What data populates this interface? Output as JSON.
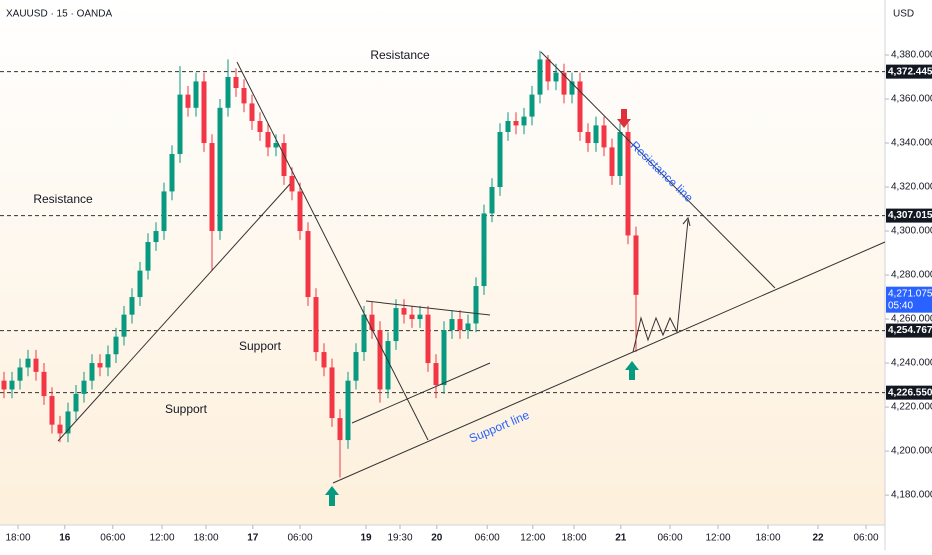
{
  "chart_data": {
    "type": "candlestick",
    "title": "XAUUSD · 15 · OANDA",
    "currency": "USD",
    "up_color": "#089981",
    "down_color": "#f23645",
    "open": [
      4232,
      4228,
      4232,
      4238,
      4242,
      4236,
      4225,
      4212,
      4208,
      4218,
      4226,
      4232,
      4240,
      4238,
      4244,
      4252,
      4262,
      4270,
      4282,
      4295,
      4300,
      4318,
      4335,
      4362,
      4356,
      4368,
      4340,
      4300,
      4356,
      4370,
      4365,
      4358,
      4350,
      4345,
      4338,
      4340,
      4325,
      4318,
      4300,
      4270,
      4245,
      4238,
      4215,
      4205,
      4232,
      4245,
      4262,
      4255,
      4228,
      4250,
      4265,
      4262,
      4260,
      4262,
      4240,
      4230,
      4255,
      4260,
      4255,
      4258,
      4275,
      4308,
      4320,
      4345,
      4350,
      4348,
      4352,
      4362,
      4378,
      4368,
      4372,
      4362,
      4368,
      4345,
      4340,
      4348,
      4338,
      4325,
      4345,
      4298
    ],
    "high": [
      4236,
      4236,
      4242,
      4246,
      4246,
      4240,
      4229,
      4216,
      4222,
      4230,
      4236,
      4244,
      4244,
      4248,
      4256,
      4266,
      4274,
      4286,
      4299,
      4304,
      4322,
      4339,
      4375,
      4366,
      4372,
      4372,
      4344,
      4360,
      4378,
      4374,
      4369,
      4362,
      4354,
      4349,
      4344,
      4344,
      4329,
      4322,
      4304,
      4274,
      4249,
      4242,
      4219,
      4236,
      4249,
      4266,
      4268,
      4259,
      4254,
      4269,
      4269,
      4266,
      4266,
      4266,
      4244,
      4259,
      4264,
      4264,
      4262,
      4279,
      4312,
      4324,
      4349,
      4354,
      4354,
      4356,
      4366,
      4382,
      4380,
      4376,
      4376,
      4372,
      4372,
      4349,
      4352,
      4352,
      4342,
      4349,
      4349,
      4302
    ],
    "low": [
      4224,
      4224,
      4228,
      4234,
      4232,
      4221,
      4208,
      4204,
      4204,
      4214,
      4222,
      4228,
      4234,
      4234,
      4240,
      4248,
      4258,
      4266,
      4278,
      4291,
      4296,
      4314,
      4331,
      4352,
      4352,
      4336,
      4282,
      4296,
      4352,
      4361,
      4354,
      4346,
      4341,
      4334,
      4334,
      4321,
      4314,
      4296,
      4266,
      4241,
      4234,
      4211,
      4188,
      4201,
      4228,
      4241,
      4251,
      4222,
      4224,
      4246,
      4258,
      4256,
      4256,
      4236,
      4224,
      4226,
      4251,
      4251,
      4251,
      4254,
      4271,
      4304,
      4316,
      4341,
      4344,
      4344,
      4348,
      4358,
      4364,
      4364,
      4358,
      4358,
      4341,
      4336,
      4336,
      4334,
      4321,
      4321,
      4294,
      4245
    ],
    "close": [
      4228,
      4232,
      4238,
      4242,
      4236,
      4225,
      4212,
      4208,
      4218,
      4226,
      4232,
      4240,
      4238,
      4244,
      4252,
      4262,
      4270,
      4282,
      4295,
      4300,
      4318,
      4335,
      4362,
      4356,
      4368,
      4340,
      4300,
      4356,
      4370,
      4365,
      4358,
      4350,
      4345,
      4338,
      4340,
      4325,
      4318,
      4300,
      4270,
      4245,
      4238,
      4215,
      4205,
      4232,
      4245,
      4262,
      4255,
      4228,
      4250,
      4265,
      4262,
      4260,
      4262,
      4240,
      4230,
      4255,
      4260,
      4255,
      4258,
      4275,
      4308,
      4320,
      4345,
      4350,
      4348,
      4352,
      4362,
      4378,
      4368,
      4372,
      4362,
      4368,
      4345,
      4340,
      4348,
      4338,
      4325,
      4345,
      4298,
      4271
    ],
    "xlim": [
      -0.5,
      110.125
    ],
    "xticks": [
      {
        "value": 1.75,
        "label": "18:00"
      },
      {
        "value": 7.6,
        "label": "16"
      },
      {
        "value": 13.6,
        "label": "06:00"
      },
      {
        "value": 19.75,
        "label": "12:00"
      },
      {
        "value": 25.25,
        "label": "18:00"
      },
      {
        "value": 31.1,
        "label": "17"
      },
      {
        "value": 37,
        "label": "06:00"
      },
      {
        "value": 45.25,
        "label": "19"
      },
      {
        "value": 49.5,
        "label": "19:30"
      },
      {
        "value": 54.1,
        "label": "20"
      },
      {
        "value": 60.4,
        "label": "06:00"
      },
      {
        "value": 66.1,
        "label": "12:00"
      },
      {
        "value": 71.25,
        "label": "18:00"
      },
      {
        "value": 77.1,
        "label": "21"
      },
      {
        "value": 83.25,
        "label": "06:00"
      },
      {
        "value": 89.25,
        "label": "12:00"
      },
      {
        "value": 95.5,
        "label": "18:00"
      },
      {
        "value": 101.75,
        "label": "22"
      },
      {
        "value": 107.75,
        "label": "06:00"
      }
    ],
    "ylim": [
      4166.4,
      4405
    ],
    "yticks": [
      {
        "value": 4180,
        "label": "4,180.000"
      },
      {
        "value": 4200,
        "label": "4,200.000"
      },
      {
        "value": 4220,
        "label": "4,220.000"
      },
      {
        "value": 4240,
        "label": "4,240.000"
      },
      {
        "value": 4260,
        "label": "4,260.000"
      },
      {
        "value": 4280,
        "label": "4,280.000"
      },
      {
        "value": 4300,
        "label": "4,300.000"
      },
      {
        "value": 4320,
        "label": "4,320.000"
      },
      {
        "value": 4340,
        "label": "4,340.000"
      },
      {
        "value": 4360,
        "label": "4,360.000"
      },
      {
        "value": 4380,
        "label": "4,380.000"
      }
    ],
    "levels": [
      {
        "value": 4372.445,
        "label": "4,372.445"
      },
      {
        "value": 4307.015,
        "label": "4,307.015"
      },
      {
        "value": 4254.767,
        "label": "4,254.767"
      },
      {
        "value": 4226.55,
        "label": "4,226.550"
      }
    ],
    "last_price": {
      "value": 4271.075,
      "label": "4,271.075"
    },
    "countdown": "05:40",
    "annotations": [
      "Resistance",
      "Resistance",
      "Support",
      "Support",
      "Resistance line",
      "Support line"
    ]
  }
}
